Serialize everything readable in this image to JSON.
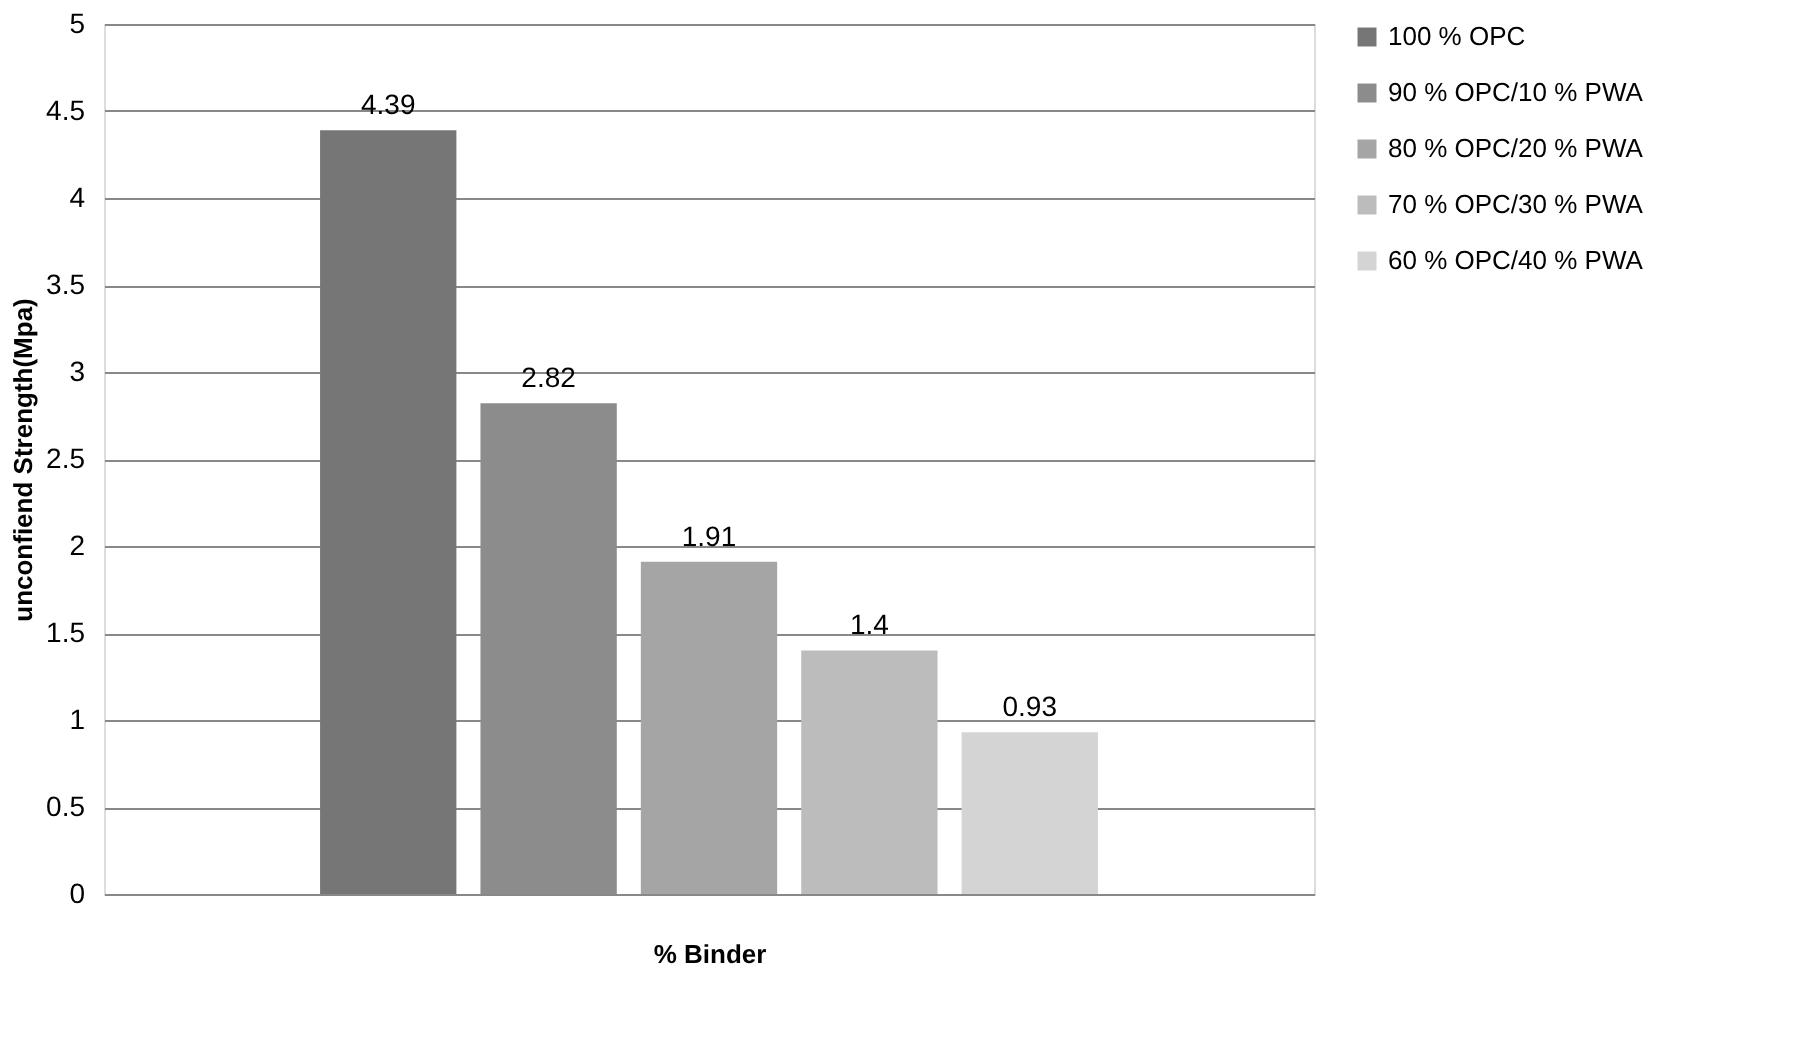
{
  "chart_data": {
    "type": "bar",
    "xlabel": "% Binder",
    "ylabel": "unconfiend Strength(Mpa)",
    "categories": [
      null
    ],
    "series": [
      {
        "name": "100 % OPC",
        "color": "#767676",
        "values": [
          4.39
        ]
      },
      {
        "name": "90 % OPC/10 % PWA",
        "color": "#8c8c8c",
        "values": [
          2.82
        ]
      },
      {
        "name": "80 % OPC/20 % PWA",
        "color": "#a5a5a5",
        "values": [
          1.91
        ]
      },
      {
        "name": "70 % OPC/30 % PWA",
        "color": "#bcbcbc",
        "values": [
          1.4
        ]
      },
      {
        "name": "60 % OPC/40 % PWA",
        "color": "#d4d4d4",
        "values": [
          0.93
        ]
      }
    ],
    "ylim": [
      0,
      5
    ],
    "yticks": [
      0,
      0.5,
      1,
      1.5,
      2,
      2.5,
      3,
      3.5,
      4,
      4.5,
      5
    ],
    "grid": "y",
    "legend": "right",
    "data_labels": true
  }
}
